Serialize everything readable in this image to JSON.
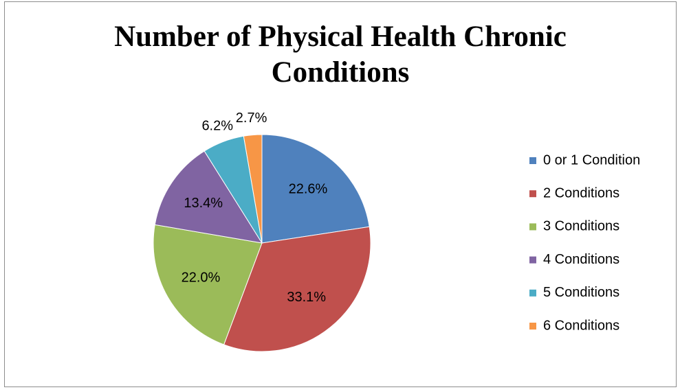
{
  "chart_data": {
    "type": "pie",
    "title": "Number of Physical Health Chronic Conditions",
    "categories": [
      "0 or 1 Condition",
      "2 Conditions",
      "3 Conditions",
      "4 Conditions",
      "5 Conditions",
      "6 Conditions"
    ],
    "values": [
      22.6,
      33.1,
      22.0,
      13.4,
      6.2,
      2.7
    ],
    "value_labels": [
      "22.6%",
      "33.1%",
      "22.0%",
      "13.4%",
      "6.2%",
      "2.7%"
    ],
    "colors": [
      "#4f81bd",
      "#c0504d",
      "#9bbb59",
      "#8064a2",
      "#4bacc6",
      "#f79646"
    ],
    "legend": "right"
  }
}
